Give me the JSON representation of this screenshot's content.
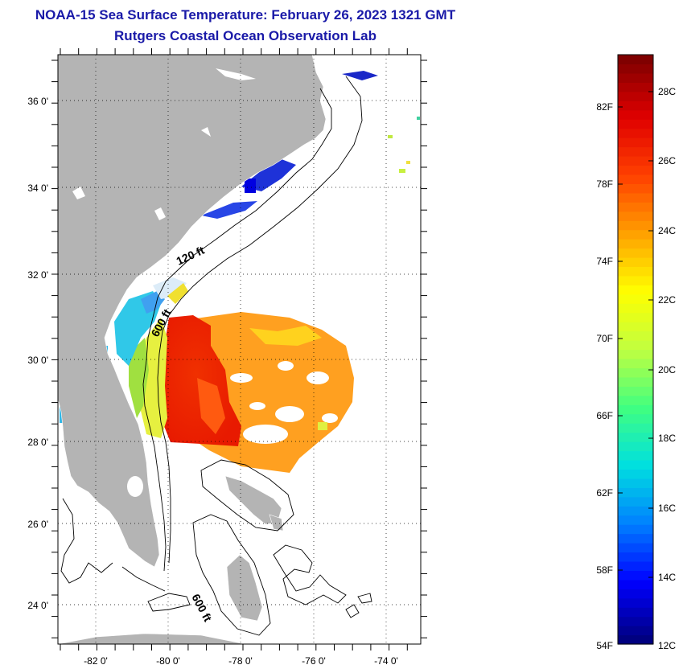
{
  "title": "NOAA-15 Sea Surface Temperature:  February 26, 2023 1321 GMT",
  "subtitle": "Rutgers Coastal Ocean Observation Lab",
  "map": {
    "lat_labels": [
      "36 0'",
      "34 0'",
      "32 0'",
      "30 0'",
      "28 0'",
      "26 0'",
      "24 0'"
    ],
    "lon_labels": [
      "-82 0'",
      "-80 0'",
      "-78 0'",
      "-76 0'",
      "-74 0'"
    ],
    "contour_labels": [
      "120 ft",
      "600 ft",
      "600 ft"
    ],
    "land_color": "#b4b4b4",
    "ocean_color": "#ffffff"
  },
  "colorbar": {
    "fahrenheit_labels": [
      "82F",
      "78F",
      "74F",
      "70F",
      "66F",
      "62F",
      "58F",
      "54F"
    ],
    "celsius_labels": [
      "28C",
      "26C",
      "24C",
      "22C",
      "20C",
      "18C",
      "16C",
      "14C",
      "12C"
    ],
    "range_celsius": [
      12,
      29
    ],
    "gradient_colors": [
      "#000080",
      "#0000ff",
      "#0080ff",
      "#00e0e0",
      "#40ff80",
      "#c0ff40",
      "#ffff00",
      "#ffa000",
      "#ff4000",
      "#e00000",
      "#800000"
    ]
  }
}
